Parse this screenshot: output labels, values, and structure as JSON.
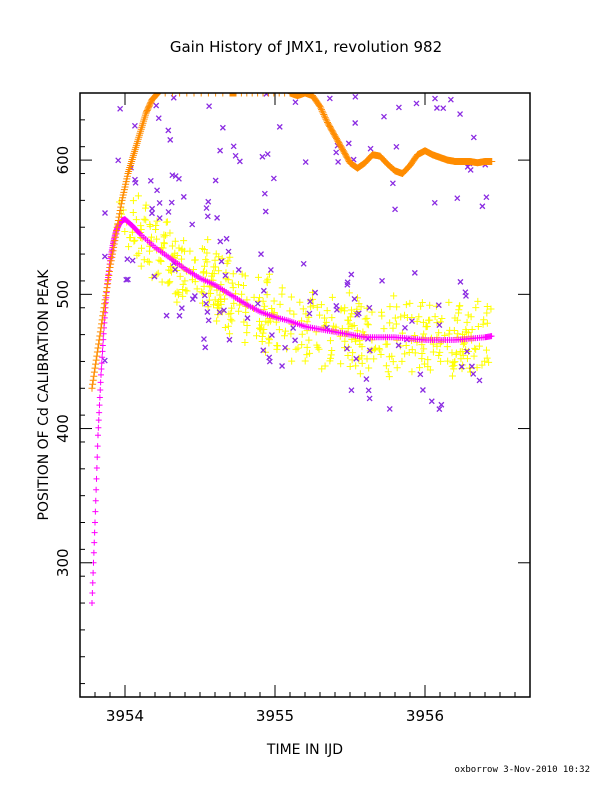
{
  "chart_data": {
    "type": "scatter",
    "title": "Gain History of JMX1, revolution 982",
    "xlabel": "TIME IN IJD",
    "ylabel": "POSITION OF Cd CALIBRATION PEAK",
    "xlim": [
      3953.7,
      3956.7
    ],
    "ylim": [
      200,
      650
    ],
    "xticks": [
      3954,
      3955,
      3956
    ],
    "yticks": [
      300,
      400,
      500,
      600
    ],
    "grid": false,
    "footer": "oxborrow   3-Nov-2010 10:32",
    "colors": {
      "orange_trend": "#ff8c00",
      "magenta_trend": "#ff00ff",
      "yellow_points": "#ffff00",
      "purple_points": "#8a2be2",
      "axis": "#000000"
    },
    "series": [
      {
        "kind": "orange-trend",
        "x": [
          3953.78,
          3953.82,
          3953.86,
          3953.9,
          3953.94,
          3953.98,
          3954.02,
          3954.06,
          3954.1,
          3954.14,
          3954.18,
          3954.22,
          3954.7,
          3954.74,
          3955.1,
          3955.15,
          3955.2,
          3955.25,
          3955.3,
          3955.35,
          3955.4,
          3955.45,
          3955.5,
          3955.55,
          3955.6,
          3955.65,
          3955.7,
          3955.75,
          3955.8,
          3955.85,
          3955.9,
          3955.95,
          3956.0,
          3956.05,
          3956.1,
          3956.15,
          3956.2,
          3956.25,
          3956.3,
          3956.35,
          3956.4,
          3956.45
        ],
        "y": [
          430,
          460,
          490,
          520,
          545,
          570,
          590,
          605,
          620,
          635,
          645,
          650,
          650,
          650,
          650,
          648,
          650,
          648,
          640,
          628,
          618,
          608,
          598,
          594,
          598,
          604,
          603,
          597,
          592,
          590,
          596,
          604,
          607,
          604,
          602,
          600,
          599,
          599,
          599,
          598,
          599,
          599
        ]
      },
      {
        "kind": "magenta-trend",
        "x": [
          3953.78,
          3953.8,
          3953.82,
          3953.84,
          3953.86,
          3953.88,
          3953.9,
          3953.92,
          3953.94,
          3953.96,
          3953.98,
          3954.0,
          3954.05,
          3954.1,
          3954.2,
          3954.3,
          3954.4,
          3954.5,
          3954.6,
          3954.7,
          3954.8,
          3954.9,
          3955.0,
          3955.1,
          3955.2,
          3955.3,
          3955.4,
          3955.5,
          3955.6,
          3955.7,
          3955.8,
          3955.9,
          3956.0,
          3956.1,
          3956.2,
          3956.3,
          3956.4,
          3956.45
        ],
        "y": [
          270,
          330,
          395,
          440,
          475,
          505,
          525,
          538,
          547,
          552,
          555,
          556,
          551,
          545,
          535,
          527,
          519,
          512,
          507,
          500,
          493,
          487,
          483,
          480,
          476,
          474,
          472,
          470,
          468,
          468,
          468,
          467,
          466,
          466,
          466,
          467,
          468,
          469
        ]
      }
    ]
  }
}
